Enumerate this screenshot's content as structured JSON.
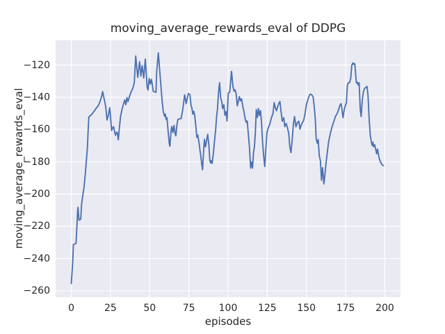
{
  "figure": {
    "title": "moving_average_rewards_eval of DDPG",
    "xlabel": "episodes",
    "ylabel": "moving_average_rewards_eval"
  },
  "chart_data": {
    "type": "line",
    "title": "moving_average_rewards_eval of DDPG",
    "xlabel": "episodes",
    "ylabel": "moving_average_rewards_eval",
    "xlim": [
      -10,
      210
    ],
    "ylim": [
      -264,
      -104.5
    ],
    "x_ticks": [
      0,
      25,
      50,
      75,
      100,
      125,
      150,
      175,
      200
    ],
    "y_ticks": [
      -120,
      -140,
      -160,
      -180,
      -200,
      -220,
      -240,
      -260
    ],
    "grid": true,
    "legend": null,
    "colors": {
      "line": "#4C72B0",
      "plot_bg": "#EAEAF2",
      "grid": "#FFFFFF",
      "figure_bg": "#FFFFFF",
      "text": "#262626"
    },
    "series": [
      {
        "name": "moving_average_rewards_eval",
        "x": [
          0,
          0.5,
          1,
          1.3,
          2,
          3,
          3.5,
          4,
          4.3,
          4.9,
          6,
          6.6,
          7,
          7.5,
          8,
          9,
          9.6,
          10.3,
          10.7,
          11.2,
          12,
          12.9,
          14,
          15,
          16,
          17,
          17.7,
          18.5,
          19.3,
          20,
          20.7,
          21.4,
          22,
          22.8,
          23.5,
          24.5,
          25.1,
          25.7,
          26.4,
          27,
          28.1,
          28.7,
          29.2,
          30,
          30.7,
          31.4,
          32.3,
          33.1,
          34.1,
          34.8,
          35.5,
          36.2,
          37,
          38,
          38.8,
          39.6,
          40.2,
          40.6,
          41.1,
          41.7,
          42.4,
          43,
          43.6,
          44.4,
          45.2,
          46.2,
          47.2,
          47.8,
          48.4,
          48.9,
          49.7,
          50.4,
          51.1,
          51.7,
          52.3,
          53.5,
          54,
          54.5,
          55.5,
          56.1,
          56.4,
          57.2,
          57.9,
          58.6,
          59.4,
          60,
          60.5,
          61,
          61.9,
          62.5,
          62.9,
          63.6,
          64.1,
          64.8,
          65.5,
          66.2,
          66.7,
          67.4,
          68,
          68.7,
          70,
          70.9,
          71.6,
          72.3,
          73.3,
          74.2,
          74.8,
          75.7,
          76.3,
          77,
          77.5,
          78.1,
          78.7,
          79.4,
          80.1,
          80.7,
          81.5,
          82.1,
          82.6,
          83.2,
          83.7,
          84.4,
          84.9,
          85.6,
          86.3,
          87,
          87.8,
          88.4,
          88.9,
          89.3,
          89.8,
          90.6,
          91.3,
          92.1,
          92.7,
          93.2,
          93.9,
          94.6,
          95.3,
          96,
          96.5,
          97.3,
          98,
          98.7,
          99.4,
          100.1,
          101,
          102.2,
          103.1,
          103.8,
          104.4,
          105.1,
          105.9,
          107.2,
          107.9,
          108.6,
          109.5,
          110.2,
          110.9,
          111.6,
          112.2,
          113,
          113.6,
          114.4,
          115,
          115.6,
          116.3,
          116.8,
          117.4,
          118,
          118.7,
          119.4,
          120,
          120.7,
          121.4,
          122,
          122.7,
          123.4,
          124.1,
          124.8,
          125.6,
          126.3,
          127.1,
          127.9,
          128.6,
          129.4,
          130.2,
          130.9,
          131.7,
          132.4,
          133.1,
          133.9,
          134.6,
          135.5,
          136.2,
          137.1,
          137.9,
          138.7,
          139.4,
          140.1,
          140.9,
          141.7,
          142.4,
          143.3,
          144.2,
          145.1,
          145.9,
          146.7,
          147.5,
          148.3,
          149.2,
          150,
          151,
          152,
          152.7,
          153.6,
          154.3,
          155,
          155.6,
          156.2,
          156.9,
          157.5,
          158.2,
          158.9,
          159.6,
          160.3,
          161.1,
          161.8,
          162.5,
          163.3,
          164,
          164.8,
          165.5,
          166.2,
          167,
          167.8,
          168.5,
          169.3,
          170,
          170.7,
          171.4,
          172.1,
          172.8,
          173.3,
          174.1,
          175,
          175.5,
          176.1,
          176.7,
          177.5,
          178.3,
          178.9,
          179.6,
          180.1,
          180.4,
          180.9,
          181.4,
          181.9,
          182.4,
          183,
          183.6,
          184.3,
          184.9,
          185.6,
          186.3,
          187,
          187.9,
          188.6,
          189.3,
          190,
          190.7,
          191.4,
          191.9,
          192.4,
          192.9,
          193.5,
          194.3,
          194.8,
          195.3,
          196.4,
          197.4,
          198.2,
          199
        ],
        "y": [
          -255.5,
          -248,
          -240.5,
          -231.5,
          -231,
          -230.6,
          -222,
          -210.5,
          -208.2,
          -216.2,
          -215.6,
          -206,
          -203.4,
          -199.5,
          -196.8,
          -187,
          -179.3,
          -170.7,
          -161,
          -152.2,
          -151.4,
          -150.8,
          -149.3,
          -148,
          -146.6,
          -145.4,
          -144.1,
          -142,
          -139.5,
          -136.4,
          -139.8,
          -143,
          -146.2,
          -154.1,
          -151.8,
          -146.4,
          -153,
          -160.6,
          -158.8,
          -158.2,
          -163.5,
          -162,
          -161.6,
          -166.3,
          -158.5,
          -152.2,
          -147.6,
          -144.8,
          -141.6,
          -144.6,
          -140.2,
          -142.6,
          -139.8,
          -137,
          -135.3,
          -133.4,
          -130.5,
          -123,
          -114.4,
          -121,
          -127.6,
          -122.5,
          -117.9,
          -126.8,
          -120.3,
          -128,
          -116.3,
          -125,
          -133.8,
          -135.5,
          -128.3,
          -131.8,
          -128.9,
          -132.3,
          -136.4,
          -136.6,
          -136.9,
          -123.9,
          -112.4,
          -119.6,
          -123.5,
          -133.3,
          -141.9,
          -148.4,
          -151.7,
          -150.4,
          -153.8,
          -152.6,
          -162.5,
          -168.9,
          -170.4,
          -161,
          -158.1,
          -161.8,
          -157.4,
          -162.4,
          -163.9,
          -156.7,
          -153.8,
          -153.4,
          -153.2,
          -148.8,
          -143.9,
          -138.4,
          -143.9,
          -139.5,
          -137.6,
          -138.4,
          -144.6,
          -147,
          -150.4,
          -148.6,
          -151,
          -157.6,
          -164.9,
          -163.4,
          -168.3,
          -172.8,
          -176.3,
          -181.4,
          -184.9,
          -173.5,
          -166.1,
          -170.7,
          -166.8,
          -163,
          -170,
          -179.2,
          -180.7,
          -179.3,
          -181,
          -175,
          -167.7,
          -160,
          -152,
          -147.5,
          -137.5,
          -130.9,
          -140.3,
          -142.7,
          -146.9,
          -144.6,
          -151.1,
          -148.9,
          -154.7,
          -137.4,
          -136.9,
          -123.9,
          -133.2,
          -136.2,
          -135.3,
          -137.4,
          -145.3,
          -139.6,
          -142.2,
          -140.9,
          -146.1,
          -149.2,
          -153.3,
          -155.6,
          -154.7,
          -163.4,
          -170.7,
          -183.9,
          -180.1,
          -183.9,
          -174,
          -170.6,
          -162.2,
          -147.6,
          -152.5,
          -146.9,
          -151.2,
          -148.3,
          -156.2,
          -167.7,
          -176.3,
          -182.9,
          -172.2,
          -162,
          -159,
          -157.6,
          -154.8,
          -151.9,
          -150.5,
          -143.3,
          -146.6,
          -148.3,
          -145.6,
          -143.8,
          -142.6,
          -149.5,
          -154.8,
          -152.6,
          -158.2,
          -156.2,
          -158.8,
          -162.5,
          -170.7,
          -174.3,
          -166.5,
          -156.5,
          -151.9,
          -158.3,
          -155.7,
          -154.8,
          -159.8,
          -157,
          -155.5,
          -154.1,
          -149.5,
          -144.5,
          -141,
          -138.5,
          -138,
          -138.7,
          -139.9,
          -146,
          -153.3,
          -165.6,
          -168.5,
          -166.2,
          -176.3,
          -179.3,
          -191.4,
          -183.6,
          -193.7,
          -188,
          -180.7,
          -174.5,
          -168.5,
          -164.5,
          -161.3,
          -158.7,
          -156.2,
          -154,
          -151.9,
          -150.6,
          -149.1,
          -146.9,
          -144.7,
          -144,
          -148.5,
          -152.6,
          -147.6,
          -144.6,
          -143.3,
          -132.5,
          -131.1,
          -130.9,
          -128.1,
          -120.2,
          -118.7,
          -119.5,
          -118.9,
          -119.5,
          -125.9,
          -131.1,
          -130.6,
          -132.4,
          -130.9,
          -147.5,
          -151.9,
          -141.8,
          -136.8,
          -134.6,
          -133.9,
          -133.2,
          -139,
          -153.3,
          -163.4,
          -167.8,
          -169.9,
          -167.8,
          -170.7,
          -169.4,
          -172.8,
          -175,
          -172.1,
          -177.8,
          -180.4,
          -181.7,
          -182.4
        ]
      }
    ]
  }
}
